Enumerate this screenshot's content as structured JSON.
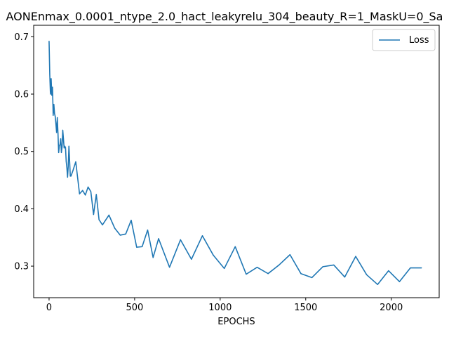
{
  "chart_data": {
    "type": "line",
    "title": "AONEnmax_0.0001_ntype_2.0_hact_leakyrelu_304_beauty_R=1_MaskU=0_Sa",
    "xlabel": "EPOCHS",
    "ylabel": "",
    "xlim": [
      -90,
      2280
    ],
    "ylim": [
      0.245,
      0.72
    ],
    "x_ticks": [
      0,
      500,
      1000,
      1500,
      2000
    ],
    "y_ticks": [
      0.3,
      0.4,
      0.5,
      0.6,
      0.7
    ],
    "x_tick_labels": [
      "0",
      "500",
      "1000",
      "1500",
      "2000"
    ],
    "y_tick_labels": [
      "0.3",
      "0.4",
      "0.5",
      "0.6",
      "0.7"
    ],
    "grid": false,
    "legend_position": "top-right",
    "series": [
      {
        "name": "Loss",
        "color": "#1f77b4",
        "x": [
          0,
          4,
          8,
          12,
          16,
          20,
          24,
          28,
          32,
          36,
          40,
          44,
          48,
          52,
          56,
          60,
          64,
          68,
          72,
          76,
          80,
          84,
          88,
          92,
          96,
          100,
          104,
          108,
          112,
          116,
          120,
          124,
          128,
          140,
          156,
          178,
          196,
          212,
          228,
          244,
          260,
          276,
          292,
          312,
          350,
          384,
          416,
          448,
          480,
          512,
          544,
          576,
          608,
          640,
          704,
          768,
          832,
          896,
          960,
          1024,
          1088,
          1152,
          1216,
          1280,
          1344,
          1408,
          1472,
          1536,
          1600,
          1664,
          1728,
          1792,
          1856,
          1920,
          1984,
          2048,
          2112,
          2176
        ],
        "y": [
          0.692,
          0.635,
          0.6,
          0.627,
          0.598,
          0.612,
          0.563,
          0.582,
          0.566,
          0.561,
          0.548,
          0.533,
          0.559,
          0.532,
          0.498,
          0.51,
          0.512,
          0.522,
          0.498,
          0.508,
          0.537,
          0.522,
          0.506,
          0.509,
          0.507,
          0.483,
          0.472,
          0.455,
          0.474,
          0.509,
          0.484,
          0.457,
          0.457,
          0.467,
          0.482,
          0.426,
          0.432,
          0.424,
          0.438,
          0.43,
          0.39,
          0.425,
          0.381,
          0.372,
          0.389,
          0.366,
          0.354,
          0.356,
          0.38,
          0.333,
          0.334,
          0.363,
          0.315,
          0.348,
          0.298,
          0.346,
          0.312,
          0.353,
          0.319,
          0.296,
          0.334,
          0.286,
          0.298,
          0.287,
          0.302,
          0.32,
          0.287,
          0.28,
          0.299,
          0.302,
          0.281,
          0.317,
          0.285,
          0.268,
          0.292,
          0.273,
          0.297,
          0.297
        ]
      }
    ]
  }
}
